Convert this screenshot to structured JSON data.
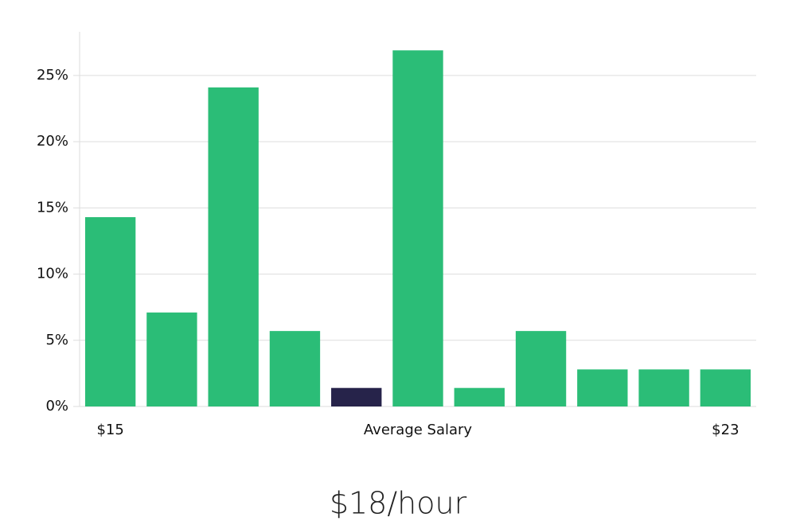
{
  "chart_data": {
    "type": "bar",
    "x_label": "Average Salary",
    "summary": "$18/hour",
    "categories": [
      "$15",
      null,
      null,
      null,
      null,
      null,
      null,
      null,
      null,
      null,
      "$23"
    ],
    "values": [
      14.3,
      7.1,
      24.1,
      5.7,
      1.4,
      26.9,
      1.4,
      5.7,
      2.8,
      2.8,
      2.8
    ],
    "colors": [
      "#2bbd77",
      "#2bbd77",
      "#2bbd77",
      "#2bbd77",
      "#26234a",
      "#2bbd77",
      "#2bbd77",
      "#2bbd77",
      "#2bbd77",
      "#2bbd77",
      "#2bbd77"
    ],
    "ylim": [
      0,
      28.3
    ],
    "yticks": [
      {
        "value": 0,
        "label": "0%"
      },
      {
        "value": 5,
        "label": "5%"
      },
      {
        "value": 10,
        "label": "10%"
      },
      {
        "value": 15,
        "label": "15%"
      },
      {
        "value": 20,
        "label": "20%"
      },
      {
        "value": 25,
        "label": "25%"
      }
    ],
    "grid": true
  }
}
